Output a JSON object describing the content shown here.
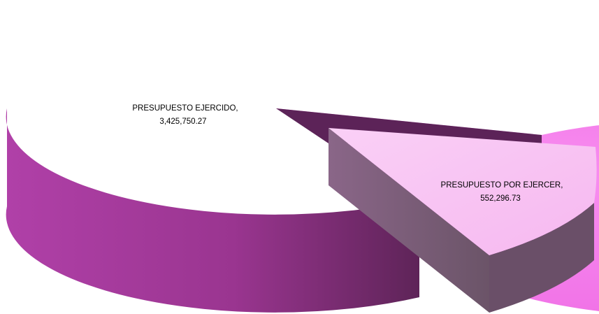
{
  "chart_data": {
    "type": "pie",
    "title": "",
    "labels": [
      "PRESUPUESTO EJERCIDO",
      "PRESUPUESTO POR EJERCER"
    ],
    "values": [
      3425750.27,
      552296.73
    ],
    "value_labels": [
      "3,425,750.27",
      "552,296.73"
    ],
    "three_d": true,
    "exploded_slice": 1,
    "colors": [
      "#F47CEC",
      "#F8C2F2"
    ],
    "legend": "none"
  }
}
